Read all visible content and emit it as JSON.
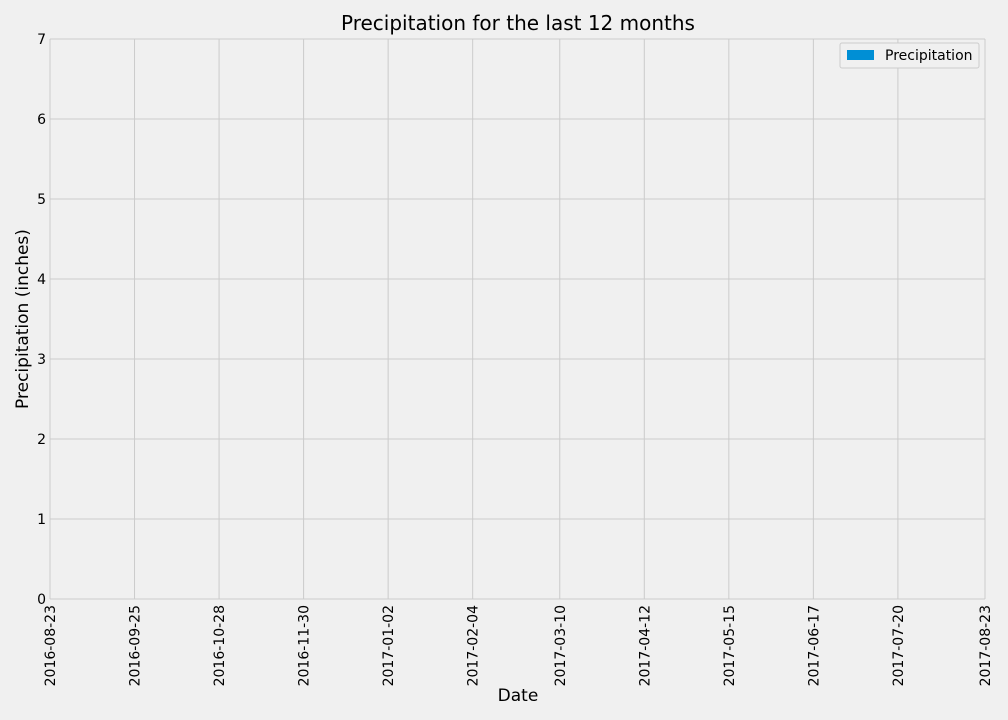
{
  "chart_data": {
    "type": "bar",
    "title": "Precipitation for the last 12 months",
    "xlabel": "Date",
    "ylabel": "Precipitation (inches)",
    "ylim": [
      0,
      7
    ],
    "yticks": [
      "0",
      "1",
      "2",
      "3",
      "4",
      "5",
      "6",
      "7"
    ],
    "xticks": [
      "2016-08-23",
      "2016-09-25",
      "2016-10-28",
      "2016-11-30",
      "2017-01-02",
      "2017-02-04",
      "2017-03-10",
      "2017-04-12",
      "2017-05-15",
      "2017-06-17",
      "2017-07-20",
      "2017-08-23"
    ],
    "series": [
      {
        "name": "Precipitation",
        "values": []
      }
    ],
    "legend": {
      "placement": "top-right",
      "entries": [
        "Precipitation"
      ]
    },
    "grid": true,
    "colors": {
      "background": "#f0f0f0",
      "grid": "#cbcbcb",
      "series": "#008fd5",
      "legend_border": "#cccccc"
    }
  }
}
